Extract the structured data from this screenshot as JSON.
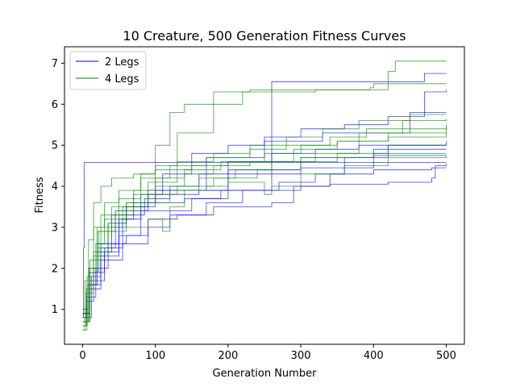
{
  "chart_data": {
    "type": "line",
    "title": "10 Creature, 500 Generation Fitness Curves",
    "xlabel": "Generation Number",
    "ylabel": "Fitness",
    "xlim": [
      -25,
      525
    ],
    "ylim": [
      0.15,
      7.4
    ],
    "xticks": [
      0,
      100,
      200,
      300,
      400,
      500
    ],
    "yticks": [
      1,
      2,
      3,
      4,
      5,
      6,
      7
    ],
    "grid": false,
    "legend": {
      "placement": "top-left",
      "entries": [
        "2 Legs",
        "4 Legs"
      ]
    },
    "colors": {
      "2 Legs": "#0000ff",
      "4 Legs": "#008000"
    },
    "series": [
      {
        "name": "2 Legs",
        "color": "#0000ff",
        "points": [
          [
            0,
            0.8
          ],
          [
            1,
            2.5
          ],
          [
            2,
            4.58
          ],
          [
            500,
            4.58
          ]
        ]
      },
      {
        "name": "2 Legs",
        "color": "#0000ff",
        "points": [
          [
            0,
            0.7
          ],
          [
            5,
            1.2
          ],
          [
            15,
            1.9
          ],
          [
            30,
            2.4
          ],
          [
            50,
            3.2
          ],
          [
            70,
            3.6
          ],
          [
            100,
            3.8
          ],
          [
            160,
            3.9
          ],
          [
            260,
            6.55
          ],
          [
            470,
            6.75
          ],
          [
            500,
            6.75
          ]
        ]
      },
      {
        "name": "2 Legs",
        "color": "#0000ff",
        "points": [
          [
            0,
            0.9
          ],
          [
            10,
            1.5
          ],
          [
            25,
            2.3
          ],
          [
            50,
            2.8
          ],
          [
            80,
            3.4
          ],
          [
            150,
            3.7
          ],
          [
            200,
            4.3
          ],
          [
            300,
            4.45
          ],
          [
            400,
            4.75
          ],
          [
            500,
            4.75
          ]
        ]
      },
      {
        "name": "2 Legs",
        "color": "#0000ff",
        "points": [
          [
            0,
            1.0
          ],
          [
            8,
            1.6
          ],
          [
            20,
            2.4
          ],
          [
            40,
            3.0
          ],
          [
            60,
            3.5
          ],
          [
            100,
            3.9
          ],
          [
            200,
            4.4
          ],
          [
            300,
            4.7
          ],
          [
            400,
            4.9
          ],
          [
            500,
            4.9
          ]
        ]
      },
      {
        "name": "2 Legs",
        "color": "#0000ff",
        "points": [
          [
            0,
            0.8
          ],
          [
            12,
            1.8
          ],
          [
            25,
            2.5
          ],
          [
            45,
            3.4
          ],
          [
            90,
            3.9
          ],
          [
            170,
            4.7
          ],
          [
            250,
            5.1
          ],
          [
            330,
            5.3
          ],
          [
            450,
            5.8
          ],
          [
            500,
            5.8
          ]
        ]
      },
      {
        "name": "2 Legs",
        "color": "#0000ff",
        "points": [
          [
            0,
            0.9
          ],
          [
            10,
            1.9
          ],
          [
            20,
            2.6
          ],
          [
            35,
            3.1
          ],
          [
            60,
            3.5
          ],
          [
            90,
            3.6
          ],
          [
            140,
            3.7
          ],
          [
            190,
            3.9
          ],
          [
            270,
            4.1
          ],
          [
            320,
            4.3
          ],
          [
            360,
            4.7
          ],
          [
            420,
            5.0
          ],
          [
            500,
            5.0
          ]
        ]
      },
      {
        "name": "2 Legs",
        "color": "#0000ff",
        "points": [
          [
            0,
            0.8
          ],
          [
            6,
            1.3
          ],
          [
            18,
            2.0
          ],
          [
            35,
            2.6
          ],
          [
            60,
            2.8
          ],
          [
            90,
            3.2
          ],
          [
            130,
            3.3
          ],
          [
            180,
            3.5
          ],
          [
            260,
            3.6
          ],
          [
            290,
            4.0
          ],
          [
            340,
            4.3
          ],
          [
            400,
            4.4
          ],
          [
            480,
            4.45
          ],
          [
            500,
            4.45
          ]
        ]
      },
      {
        "name": "2 Legs",
        "color": "#0000ff",
        "points": [
          [
            0,
            0.7
          ],
          [
            10,
            1.6
          ],
          [
            25,
            2.2
          ],
          [
            55,
            2.6
          ],
          [
            90,
            3.0
          ],
          [
            120,
            3.3
          ],
          [
            170,
            3.6
          ],
          [
            220,
            3.9
          ],
          [
            300,
            4.0
          ],
          [
            340,
            4.05
          ],
          [
            420,
            4.1
          ],
          [
            480,
            4.2
          ],
          [
            485,
            4.5
          ],
          [
            500,
            4.55
          ]
        ]
      },
      {
        "name": "2 Legs",
        "color": "#0000ff",
        "points": [
          [
            0,
            0.8
          ],
          [
            10,
            1.7
          ],
          [
            30,
            2.5
          ],
          [
            55,
            3.2
          ],
          [
            80,
            3.8
          ],
          [
            110,
            4.3
          ],
          [
            150,
            4.8
          ],
          [
            200,
            5.0
          ],
          [
            250,
            5.2
          ],
          [
            300,
            5.4
          ],
          [
            360,
            5.5
          ],
          [
            420,
            5.7
          ],
          [
            470,
            6.3
          ],
          [
            500,
            6.35
          ]
        ]
      },
      {
        "name": "2 Legs",
        "color": "#0000ff",
        "points": [
          [
            0,
            0.9
          ],
          [
            10,
            1.9
          ],
          [
            25,
            2.6
          ],
          [
            50,
            3.3
          ],
          [
            85,
            3.7
          ],
          [
            120,
            4.0
          ],
          [
            160,
            4.3
          ],
          [
            200,
            4.6
          ],
          [
            260,
            4.8
          ],
          [
            320,
            4.9
          ],
          [
            380,
            5.0
          ],
          [
            500,
            5.1
          ]
        ]
      },
      {
        "name": "4 Legs",
        "color": "#008000",
        "points": [
          [
            0,
            0.5
          ],
          [
            3,
            1.7
          ],
          [
            8,
            2.7
          ],
          [
            15,
            3.6
          ],
          [
            25,
            4.0
          ],
          [
            40,
            4.2
          ],
          [
            70,
            4.3
          ],
          [
            100,
            4.4
          ],
          [
            150,
            4.5
          ],
          [
            200,
            4.6
          ],
          [
            300,
            4.7
          ],
          [
            400,
            4.8
          ],
          [
            500,
            4.8
          ]
        ]
      },
      {
        "name": "4 Legs",
        "color": "#008000",
        "points": [
          [
            0,
            0.6
          ],
          [
            6,
            1.8
          ],
          [
            15,
            3.0
          ],
          [
            30,
            3.6
          ],
          [
            50,
            3.9
          ],
          [
            80,
            4.3
          ],
          [
            100,
            5.0
          ],
          [
            120,
            5.8
          ],
          [
            140,
            6.0
          ],
          [
            180,
            6.3
          ],
          [
            230,
            6.35
          ],
          [
            380,
            6.35
          ],
          [
            395,
            6.4
          ],
          [
            400,
            6.5
          ],
          [
            500,
            6.5
          ]
        ]
      },
      {
        "name": "4 Legs",
        "color": "#008000",
        "points": [
          [
            0,
            0.7
          ],
          [
            8,
            2.0
          ],
          [
            20,
            3.0
          ],
          [
            40,
            3.5
          ],
          [
            70,
            3.9
          ],
          [
            100,
            4.5
          ],
          [
            130,
            5.3
          ],
          [
            180,
            6.0
          ],
          [
            220,
            6.3
          ],
          [
            320,
            6.35
          ],
          [
            400,
            6.35
          ],
          [
            420,
            6.8
          ],
          [
            430,
            7.05
          ],
          [
            500,
            7.05
          ]
        ]
      },
      {
        "name": "4 Legs",
        "color": "#008000",
        "points": [
          [
            0,
            0.8
          ],
          [
            10,
            2.2
          ],
          [
            25,
            3.3
          ],
          [
            50,
            3.7
          ],
          [
            80,
            4.2
          ],
          [
            120,
            4.5
          ],
          [
            170,
            4.7
          ],
          [
            230,
            4.9
          ],
          [
            280,
            5.0
          ],
          [
            340,
            5.2
          ],
          [
            390,
            5.4
          ],
          [
            440,
            5.6
          ],
          [
            500,
            5.65
          ]
        ]
      },
      {
        "name": "4 Legs",
        "color": "#008000",
        "points": [
          [
            0,
            0.7
          ],
          [
            8,
            2.0
          ],
          [
            20,
            2.9
          ],
          [
            40,
            3.3
          ],
          [
            70,
            3.8
          ],
          [
            100,
            4.2
          ],
          [
            140,
            4.4
          ],
          [
            190,
            4.6
          ],
          [
            250,
            4.8
          ],
          [
            300,
            5.0
          ],
          [
            350,
            5.1
          ],
          [
            420,
            5.3
          ],
          [
            500,
            5.5
          ]
        ]
      },
      {
        "name": "4 Legs",
        "color": "#008000",
        "points": [
          [
            0,
            0.6
          ],
          [
            5,
            1.5
          ],
          [
            15,
            2.4
          ],
          [
            35,
            3.0
          ],
          [
            55,
            3.5
          ],
          [
            90,
            3.8
          ],
          [
            130,
            4.0
          ],
          [
            180,
            4.2
          ],
          [
            240,
            4.4
          ],
          [
            300,
            4.6
          ],
          [
            350,
            4.8
          ],
          [
            420,
            5.0
          ],
          [
            500,
            5.0
          ]
        ]
      },
      {
        "name": "4 Legs",
        "color": "#008000",
        "points": [
          [
            0,
            0.7
          ],
          [
            10,
            2.0
          ],
          [
            20,
            2.5
          ],
          [
            40,
            2.9
          ],
          [
            60,
            3.0
          ],
          [
            90,
            3.2
          ],
          [
            110,
            2.9
          ],
          [
            120,
            3.5
          ],
          [
            140,
            3.9
          ],
          [
            170,
            4.0
          ],
          [
            200,
            4.1
          ],
          [
            250,
            3.8
          ],
          [
            260,
            4.0
          ],
          [
            300,
            4.3
          ],
          [
            360,
            4.5
          ],
          [
            420,
            4.7
          ],
          [
            500,
            4.75
          ]
        ]
      },
      {
        "name": "4 Legs",
        "color": "#008000",
        "points": [
          [
            0,
            0.5
          ],
          [
            6,
            1.6
          ],
          [
            18,
            2.6
          ],
          [
            30,
            3.2
          ],
          [
            60,
            3.6
          ],
          [
            100,
            4.0
          ],
          [
            140,
            4.3
          ],
          [
            180,
            4.5
          ],
          [
            230,
            4.6
          ],
          [
            290,
            4.9
          ],
          [
            350,
            5.1
          ],
          [
            420,
            5.2
          ],
          [
            500,
            5.3
          ]
        ]
      },
      {
        "name": "4 Legs",
        "color": "#008000",
        "points": [
          [
            0,
            0.7
          ],
          [
            8,
            1.9
          ],
          [
            22,
            2.9
          ],
          [
            45,
            3.4
          ],
          [
            80,
            3.6
          ],
          [
            120,
            3.9
          ],
          [
            160,
            4.2
          ],
          [
            210,
            4.4
          ],
          [
            260,
            4.6
          ],
          [
            320,
            4.8
          ],
          [
            380,
            5.3
          ],
          [
            440,
            5.4
          ],
          [
            500,
            5.45
          ]
        ]
      },
      {
        "name": "4 Legs",
        "color": "#008000",
        "points": [
          [
            0,
            0.6
          ],
          [
            5,
            1.4
          ],
          [
            15,
            2.3
          ],
          [
            35,
            3.1
          ],
          [
            60,
            3.6
          ],
          [
            90,
            4.1
          ],
          [
            130,
            4.6
          ],
          [
            180,
            4.8
          ],
          [
            230,
            5.0
          ],
          [
            280,
            5.2
          ],
          [
            330,
            5.4
          ],
          [
            380,
            5.6
          ],
          [
            450,
            5.75
          ],
          [
            500,
            5.75
          ]
        ]
      }
    ]
  }
}
